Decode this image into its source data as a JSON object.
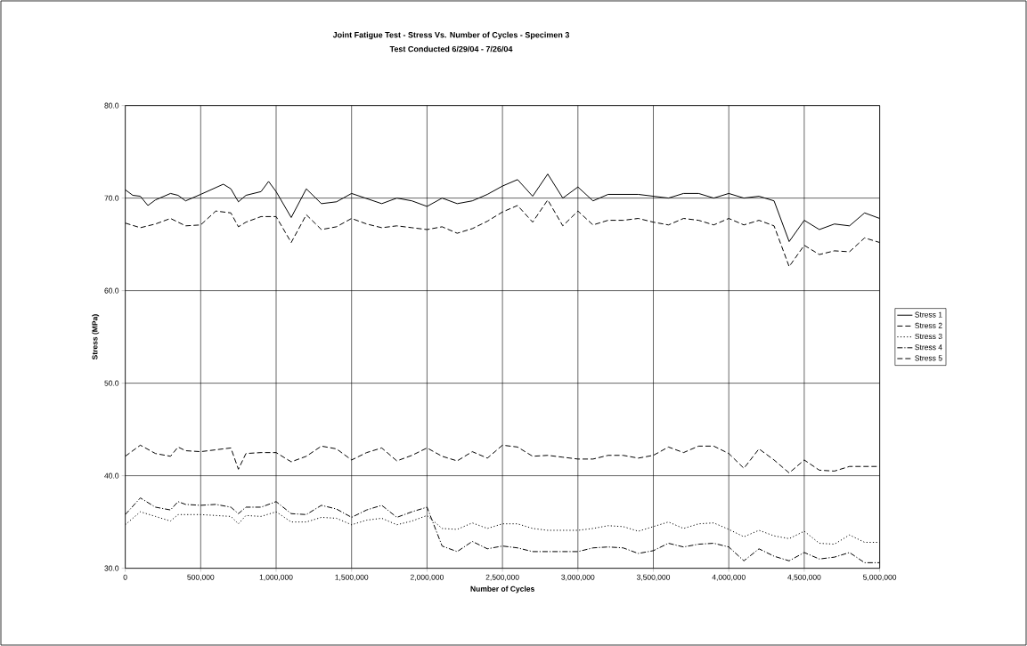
{
  "chart_data": {
    "type": "line",
    "title": "Joint Fatigue Test - Stress Vs. Number of Cycles - Specimen 3",
    "subtitle": "Test Conducted 6/29/04 - 7/26/04",
    "xlabel": "Number of Cycles",
    "ylabel": "Stress (MPa)",
    "xlim": [
      0,
      5000000
    ],
    "ylim": [
      30,
      80
    ],
    "xticks": [
      {
        "value": 0,
        "label": "0"
      },
      {
        "value": 500000,
        "label": "500,000"
      },
      {
        "value": 1000000,
        "label": "1,000,000"
      },
      {
        "value": 1500000,
        "label": "1,500,000"
      },
      {
        "value": 2000000,
        "label": "2,000,000"
      },
      {
        "value": 2500000,
        "label": "2,500,000"
      },
      {
        "value": 3000000,
        "label": "3,000,000"
      },
      {
        "value": 3500000,
        "label": "3,500,000"
      },
      {
        "value": 4000000,
        "label": "4,000,000"
      },
      {
        "value": 4500000,
        "label": "4,500,000"
      },
      {
        "value": 5000000,
        "label": "5,000,000"
      }
    ],
    "yticks": [
      {
        "value": 30,
        "label": "30.0"
      },
      {
        "value": 40,
        "label": "40.0"
      },
      {
        "value": 50,
        "label": "50.0"
      },
      {
        "value": 60,
        "label": "60.0"
      },
      {
        "value": 70,
        "label": "70.0"
      },
      {
        "value": 80,
        "label": "80.0"
      }
    ],
    "grid": true,
    "legend": "right",
    "marker": "none",
    "series": [
      {
        "name": "Stress 1",
        "color": "#000000",
        "line_style": "solid",
        "x": [
          0,
          50000,
          100000,
          150000,
          200000,
          300000,
          350000,
          400000,
          500000,
          650000,
          700000,
          750000,
          800000,
          900000,
          950000,
          1000000,
          1100000,
          1200000,
          1300000,
          1400000,
          1500000,
          1700000,
          1800000,
          1900000,
          2000000,
          2100000,
          2200000,
          2300000,
          2400000,
          2500000,
          2600000,
          2700000,
          2800000,
          2900000,
          3000000,
          3100000,
          3200000,
          3400000,
          3600000,
          3700000,
          3800000,
          3900000,
          4000000,
          4100000,
          4200000,
          4300000,
          4400000,
          4500000,
          4600000,
          4700000,
          4800000,
          4900000,
          5000000
        ],
        "values": [
          70.9,
          70.3,
          70.2,
          69.2,
          69.8,
          70.5,
          70.3,
          69.7,
          70.4,
          71.5,
          71.0,
          69.6,
          70.3,
          70.7,
          71.8,
          70.7,
          67.9,
          71.0,
          69.4,
          69.6,
          70.5,
          69.4,
          70.0,
          69.7,
          69.1,
          70.0,
          69.4,
          69.7,
          70.4,
          71.3,
          72.0,
          70.2,
          72.6,
          70.0,
          71.2,
          69.7,
          70.4,
          70.4,
          70.0,
          70.5,
          70.5,
          70.0,
          70.5,
          70.0,
          70.2,
          69.7,
          65.3,
          67.6,
          66.6,
          67.2,
          67.0,
          68.4,
          67.8
        ]
      },
      {
        "name": "Stress 2",
        "color": "#000000",
        "line_style": "dashed",
        "x": [
          0,
          100000,
          200000,
          300000,
          350000,
          400000,
          500000,
          600000,
          700000,
          750000,
          800000,
          900000,
          1000000,
          1100000,
          1200000,
          1300000,
          1400000,
          1500000,
          1600000,
          1700000,
          1800000,
          1900000,
          2000000,
          2100000,
          2200000,
          2300000,
          2400000,
          2500000,
          2600000,
          2700000,
          2800000,
          2900000,
          3000000,
          3100000,
          3200000,
          3300000,
          3400000,
          3500000,
          3600000,
          3700000,
          3800000,
          3900000,
          4000000,
          4100000,
          4200000,
          4300000,
          4400000,
          4500000,
          4600000,
          4700000,
          4800000,
          4900000,
          5000000
        ],
        "values": [
          42.1,
          43.3,
          42.4,
          42.1,
          43.1,
          42.7,
          42.6,
          42.8,
          43.0,
          40.7,
          42.4,
          42.5,
          42.5,
          41.5,
          42.1,
          43.2,
          42.9,
          41.7,
          42.5,
          43.0,
          41.6,
          42.2,
          43.0,
          42.1,
          41.6,
          42.6,
          41.9,
          43.3,
          43.1,
          42.1,
          42.2,
          42.0,
          41.8,
          41.8,
          42.2,
          42.2,
          41.9,
          42.2,
          43.1,
          42.5,
          43.2,
          43.2,
          42.4,
          40.8,
          42.9,
          41.7,
          40.3,
          41.7,
          40.6,
          40.5,
          41.0,
          41.0,
          41.0
        ]
      },
      {
        "name": "Stress 3",
        "color": "#000000",
        "line_style": "dotted",
        "x": [
          0,
          100000,
          200000,
          300000,
          350000,
          400000,
          500000,
          600000,
          700000,
          750000,
          800000,
          900000,
          1000000,
          1100000,
          1200000,
          1300000,
          1400000,
          1500000,
          1600000,
          1700000,
          1800000,
          1900000,
          2000000,
          2100000,
          2200000,
          2300000,
          2400000,
          2500000,
          2600000,
          2700000,
          2800000,
          2900000,
          3000000,
          3100000,
          3200000,
          3300000,
          3400000,
          3500000,
          3600000,
          3700000,
          3800000,
          3900000,
          4000000,
          4100000,
          4200000,
          4300000,
          4400000,
          4500000,
          4600000,
          4700000,
          4800000,
          4900000,
          5000000
        ],
        "values": [
          34.7,
          36.1,
          35.6,
          35.1,
          35.8,
          35.8,
          35.8,
          35.7,
          35.6,
          34.8,
          35.7,
          35.6,
          36.1,
          35.0,
          35.0,
          35.5,
          35.4,
          34.7,
          35.2,
          35.4,
          34.7,
          35.1,
          35.7,
          34.3,
          34.2,
          34.9,
          34.3,
          34.8,
          34.8,
          34.3,
          34.1,
          34.1,
          34.1,
          34.3,
          34.6,
          34.5,
          34.0,
          34.5,
          35.0,
          34.3,
          34.8,
          34.9,
          34.2,
          33.4,
          34.1,
          33.5,
          33.2,
          34.0,
          32.7,
          32.6,
          33.6,
          32.8,
          32.8
        ]
      },
      {
        "name": "Stress 4",
        "color": "#000000",
        "line_style": "dashdot",
        "x": [
          0,
          100000,
          200000,
          300000,
          350000,
          400000,
          500000,
          600000,
          700000,
          750000,
          800000,
          900000,
          1000000,
          1100000,
          1200000,
          1300000,
          1400000,
          1500000,
          1600000,
          1700000,
          1800000,
          1900000,
          2000000,
          2100000,
          2200000,
          2300000,
          2400000,
          2500000,
          2600000,
          2700000,
          2800000,
          2900000,
          3000000,
          3100000,
          3200000,
          3300000,
          3400000,
          3500000,
          3600000,
          3700000,
          3800000,
          3900000,
          4000000,
          4100000,
          4200000,
          4300000,
          4400000,
          4500000,
          4600000,
          4700000,
          4800000,
          4900000,
          5000000
        ],
        "values": [
          35.8,
          37.6,
          36.6,
          36.3,
          37.2,
          36.9,
          36.8,
          36.9,
          36.6,
          35.9,
          36.6,
          36.6,
          37.2,
          35.9,
          35.8,
          36.8,
          36.4,
          35.5,
          36.3,
          36.8,
          35.5,
          36.1,
          36.6,
          32.4,
          31.8,
          32.9,
          32.1,
          32.4,
          32.2,
          31.8,
          31.8,
          31.8,
          31.8,
          32.2,
          32.3,
          32.2,
          31.6,
          31.9,
          32.7,
          32.3,
          32.6,
          32.7,
          32.3,
          30.8,
          32.1,
          31.3,
          30.8,
          31.7,
          31.0,
          31.2,
          31.7,
          30.6,
          30.6
        ]
      },
      {
        "name": "Stress 5",
        "color": "#000000",
        "line_style": "dashed",
        "x": [
          0,
          100000,
          200000,
          300000,
          400000,
          500000,
          600000,
          700000,
          750000,
          800000,
          900000,
          1000000,
          1100000,
          1200000,
          1300000,
          1400000,
          1500000,
          1600000,
          1700000,
          1800000,
          1900000,
          2000000,
          2100000,
          2200000,
          2300000,
          2400000,
          2500000,
          2600000,
          2700000,
          2800000,
          2900000,
          3000000,
          3100000,
          3200000,
          3300000,
          3400000,
          3500000,
          3600000,
          3700000,
          3800000,
          3900000,
          4000000,
          4100000,
          4200000,
          4300000,
          4400000,
          4500000,
          4600000,
          4700000,
          4800000,
          4900000,
          5000000
        ],
        "values": [
          67.3,
          66.8,
          67.2,
          67.8,
          67.0,
          67.1,
          68.6,
          68.4,
          66.9,
          67.4,
          68.0,
          68.0,
          65.2,
          68.2,
          66.6,
          66.9,
          67.8,
          67.2,
          66.8,
          67.0,
          66.8,
          66.6,
          66.9,
          66.2,
          66.7,
          67.5,
          68.5,
          69.2,
          67.4,
          69.8,
          67.0,
          68.6,
          67.1,
          67.6,
          67.6,
          67.8,
          67.4,
          67.1,
          67.8,
          67.6,
          67.1,
          67.8,
          67.1,
          67.6,
          67.0,
          62.6,
          64.9,
          63.9,
          64.3,
          64.2,
          65.7,
          65.2
        ]
      }
    ]
  }
}
